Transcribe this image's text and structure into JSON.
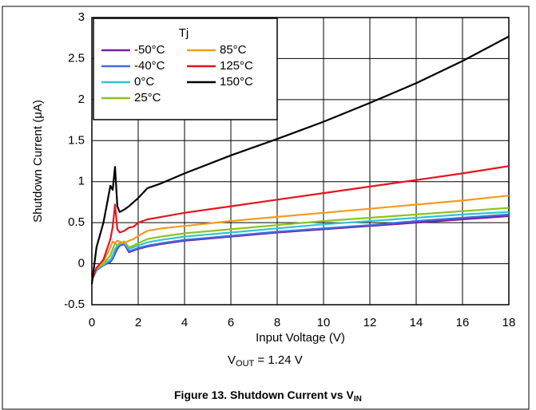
{
  "chart_data": {
    "type": "line",
    "title": "Figure 13. Shutdown Current vs V",
    "title_sub": "IN",
    "note_main": "V",
    "note_sub": "OUT",
    "note_rest": " = 1.24 V",
    "x_label": "Input Voltage (V)",
    "y_label": "Shutdown Current (μA)",
    "legend_title": "Tj",
    "legend_position": "upper left",
    "grid": true,
    "x": [
      0,
      0.2,
      0.5,
      0.8,
      0.9,
      1.0,
      1.1,
      1.2,
      1.4,
      1.6,
      1.8,
      2,
      2.4,
      3,
      4,
      6,
      8,
      10,
      12,
      14,
      16,
      18
    ],
    "xlim": [
      0,
      18
    ],
    "xticks": [
      0,
      2,
      4,
      6,
      8,
      10,
      12,
      14,
      16,
      18
    ],
    "ylim": [
      -0.5,
      3
    ],
    "yticks": [
      -0.5,
      0,
      0.5,
      1,
      1.5,
      2,
      2.5,
      3
    ],
    "series": [
      {
        "name": "-50°C",
        "color": "#7b1fa2",
        "values": [
          -0.2,
          -0.08,
          -0.02,
          0.02,
          0.06,
          0.12,
          0.18,
          0.22,
          0.24,
          0.14,
          0.16,
          0.18,
          0.21,
          0.24,
          0.28,
          0.33,
          0.38,
          0.42,
          0.46,
          0.5,
          0.54,
          0.58
        ]
      },
      {
        "name": "-40°C",
        "color": "#3a6fe0",
        "values": [
          -0.2,
          -0.08,
          -0.02,
          0.03,
          0.07,
          0.13,
          0.19,
          0.23,
          0.25,
          0.15,
          0.17,
          0.19,
          0.22,
          0.25,
          0.29,
          0.34,
          0.39,
          0.43,
          0.47,
          0.52,
          0.56,
          0.6
        ]
      },
      {
        "name": "0°C",
        "color": "#2ec4d6",
        "values": [
          -0.2,
          -0.07,
          -0.01,
          0.05,
          0.1,
          0.18,
          0.22,
          0.24,
          0.26,
          0.18,
          0.2,
          0.22,
          0.26,
          0.29,
          0.33,
          0.38,
          0.43,
          0.48,
          0.52,
          0.56,
          0.6,
          0.63
        ]
      },
      {
        "name": "25°C",
        "color": "#8dc21f",
        "values": [
          -0.2,
          -0.06,
          0.0,
          0.1,
          0.18,
          0.25,
          0.22,
          0.25,
          0.27,
          0.2,
          0.22,
          0.25,
          0.3,
          0.33,
          0.37,
          0.42,
          0.47,
          0.52,
          0.56,
          0.6,
          0.64,
          0.68
        ]
      },
      {
        "name": "85°C",
        "color": "#f39c1a",
        "values": [
          -0.2,
          -0.05,
          0.02,
          0.2,
          0.27,
          0.25,
          0.28,
          0.27,
          0.25,
          0.28,
          0.3,
          0.34,
          0.4,
          0.43,
          0.46,
          0.52,
          0.57,
          0.62,
          0.67,
          0.72,
          0.77,
          0.83
        ]
      },
      {
        "name": "125°C",
        "color": "#e8141e",
        "values": [
          -0.2,
          -0.05,
          0.05,
          0.3,
          0.45,
          0.72,
          0.42,
          0.38,
          0.4,
          0.44,
          0.45,
          0.5,
          0.54,
          0.57,
          0.62,
          0.7,
          0.78,
          0.86,
          0.94,
          1.02,
          1.1,
          1.19
        ]
      },
      {
        "name": "150°C",
        "color": "#000000",
        "values": [
          -0.25,
          0.2,
          0.5,
          0.95,
          0.9,
          1.18,
          0.7,
          0.63,
          0.66,
          0.7,
          0.75,
          0.8,
          0.92,
          0.98,
          1.1,
          1.32,
          1.52,
          1.73,
          1.96,
          2.2,
          2.47,
          2.77
        ]
      }
    ]
  }
}
